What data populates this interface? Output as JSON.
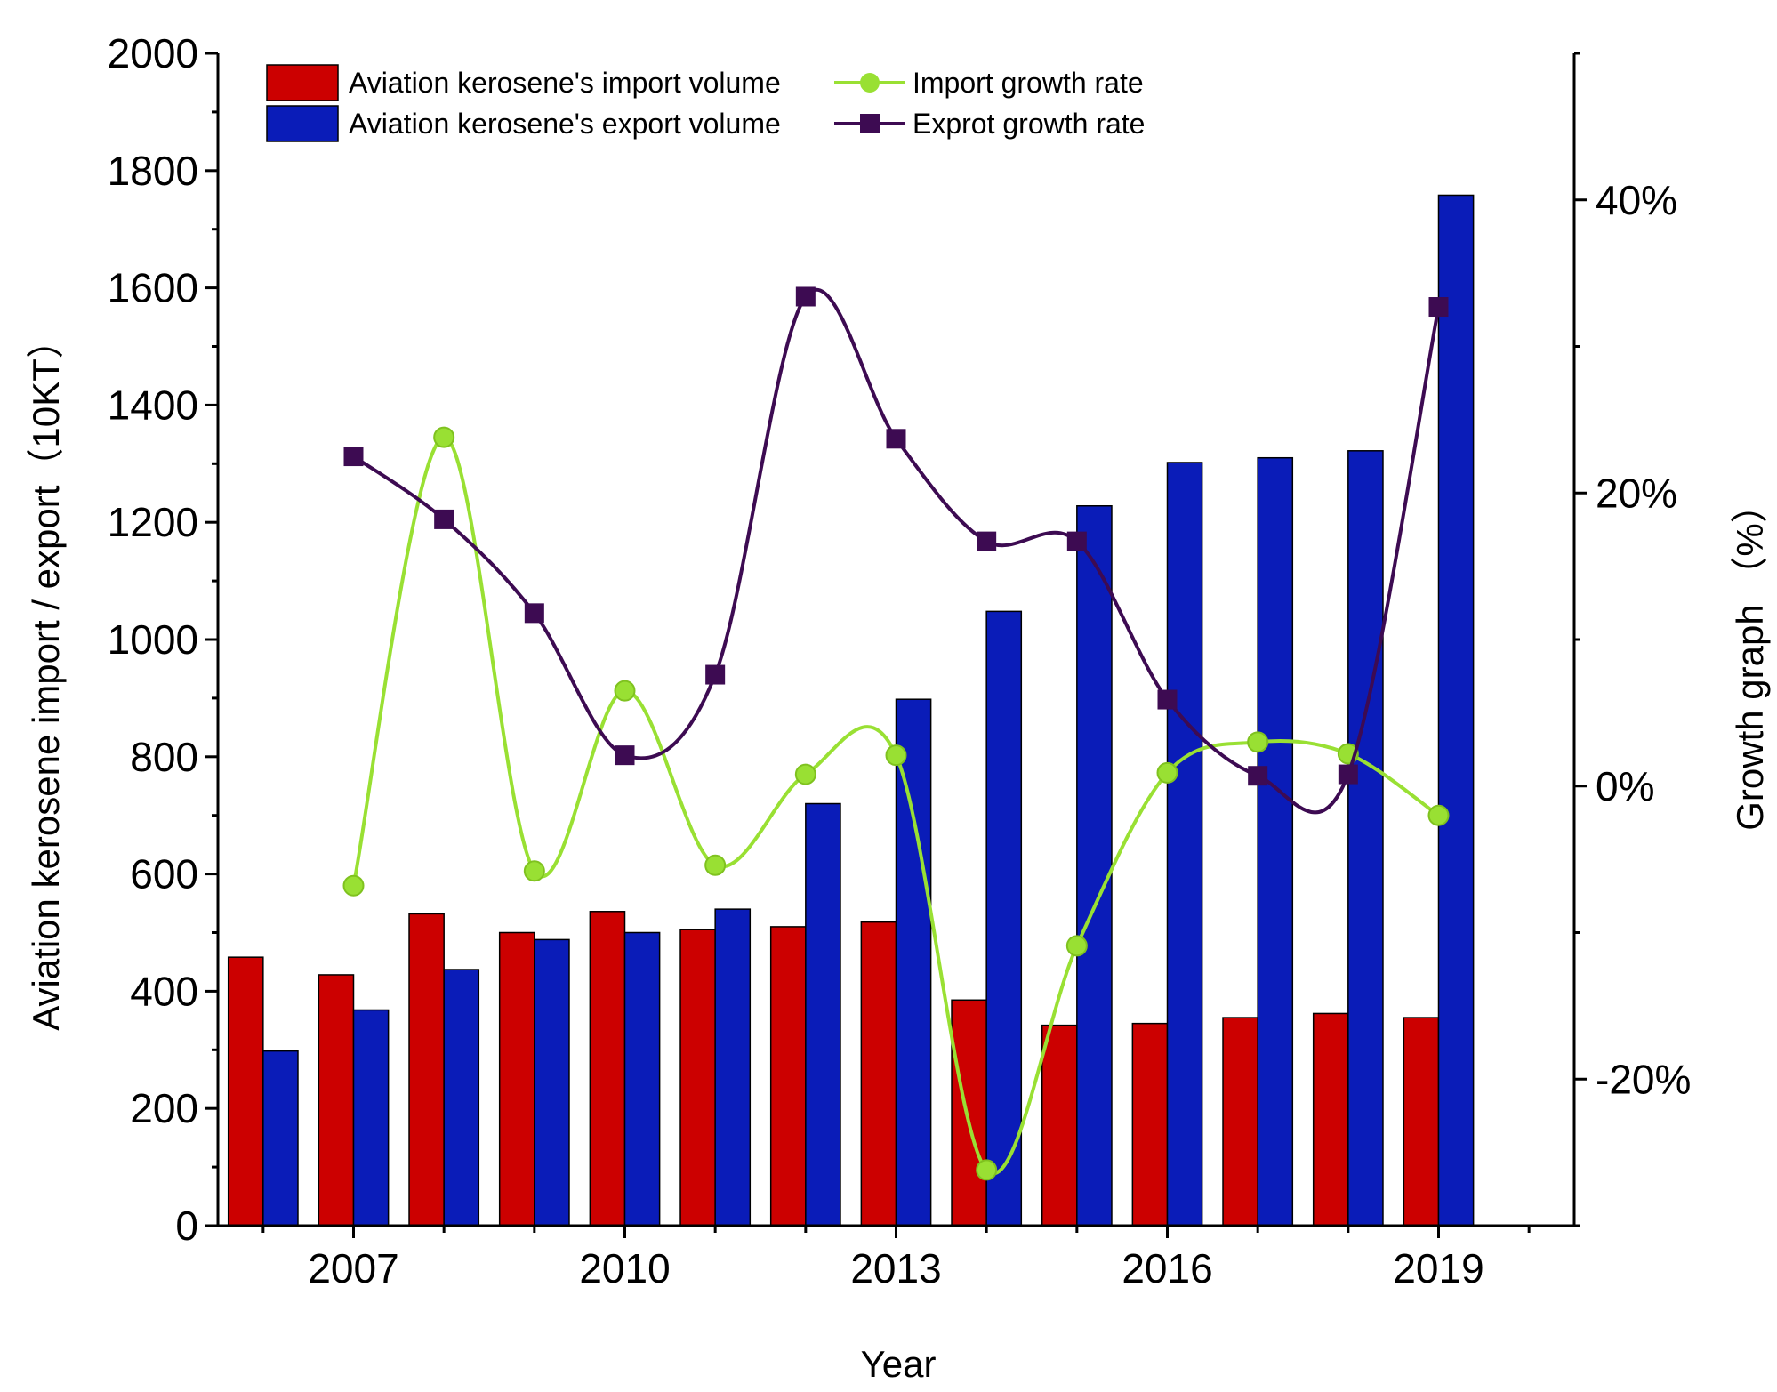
{
  "chart_data": {
    "type": "bar",
    "title": "",
    "xlabel": "Year",
    "ylabel": "Aviation kerosene import / export（10KT）",
    "y2label": "Growth graph （%）",
    "ylim": [
      0,
      2000
    ],
    "y2lim": [
      -30,
      50
    ],
    "xlim": [
      2005.5,
      2020.5
    ],
    "x": [
      2006,
      2007,
      2008,
      2009,
      2010,
      2011,
      2012,
      2013,
      2014,
      2015,
      2016,
      2017,
      2018,
      2019
    ],
    "x_tick_labels": [
      "2007",
      "2010",
      "2013",
      "2016",
      "2019"
    ],
    "x_tick_values": [
      2007,
      2010,
      2013,
      2016,
      2019
    ],
    "y_tick_labels": [
      "0",
      "200",
      "400",
      "600",
      "800",
      "1000",
      "1200",
      "1400",
      "1600",
      "1800",
      "2000"
    ],
    "y_tick_values": [
      0,
      200,
      400,
      600,
      800,
      1000,
      1200,
      1400,
      1600,
      1800,
      2000
    ],
    "y2_tick_labels": [
      "-20%",
      "0%",
      "20%",
      "40%"
    ],
    "y2_tick_values": [
      -20,
      0,
      20,
      40
    ],
    "grid": false,
    "legend_position": "top-left",
    "series": [
      {
        "name": "Aviation kerosene's import volume",
        "kind": "bar",
        "axis": "left",
        "color": "#cc0000",
        "values": [
          458,
          428,
          532,
          500,
          536,
          505,
          510,
          518,
          385,
          342,
          345,
          355,
          362,
          355
        ]
      },
      {
        "name": "Aviation kerosene's export volume",
        "kind": "bar",
        "axis": "left",
        "color": "#0a1cb8",
        "values": [
          298,
          368,
          437,
          488,
          500,
          540,
          720,
          898,
          1048,
          1228,
          1302,
          1310,
          1322,
          1758
        ]
      },
      {
        "name": "Import growth rate",
        "kind": "line",
        "axis": "right",
        "color": "#99e033",
        "marker": "circle",
        "x": [
          2007,
          2008,
          2009,
          2010,
          2011,
          2012,
          2013,
          2014,
          2015,
          2016,
          2017,
          2018,
          2019
        ],
        "values": [
          -6.8,
          23.8,
          -5.8,
          6.5,
          -5.4,
          0.8,
          2.1,
          -26.2,
          -10.9,
          0.9,
          3.0,
          2.2,
          -2.0
        ]
      },
      {
        "name": "Exprot growth rate",
        "kind": "line",
        "axis": "right",
        "color": "#3d0b52",
        "marker": "square",
        "x": [
          2007,
          2008,
          2009,
          2010,
          2011,
          2012,
          2013,
          2014,
          2015,
          2016,
          2017,
          2018,
          2019
        ],
        "values": [
          22.5,
          18.2,
          11.8,
          2.1,
          7.6,
          33.4,
          23.7,
          16.7,
          16.7,
          5.9,
          0.7,
          0.8,
          32.7
        ]
      }
    ]
  }
}
